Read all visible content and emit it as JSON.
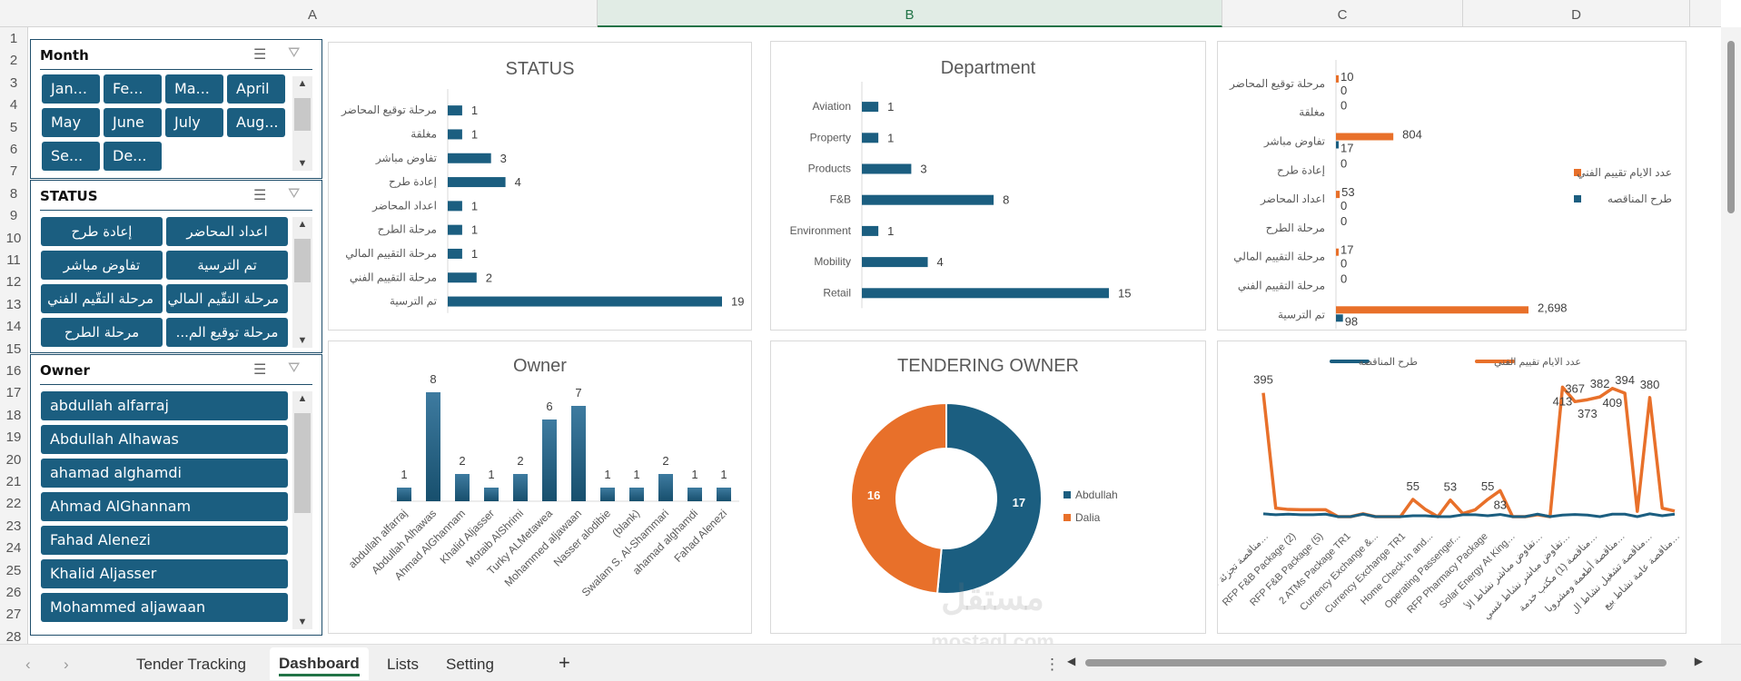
{
  "columns": [
    "A",
    "B",
    "C",
    "D"
  ],
  "rows": [
    "1",
    "2",
    "3",
    "4",
    "5",
    "6",
    "7",
    "8",
    "9",
    "10",
    "11",
    "12",
    "13",
    "14",
    "15",
    "16",
    "17",
    "18",
    "19",
    "20",
    "21",
    "22",
    "23",
    "24",
    "25",
    "26",
    "27",
    "28"
  ],
  "slicers": {
    "month": {
      "title": "Month",
      "items": [
        "Jan...",
        "Fe...",
        "Ma...",
        "April",
        "May",
        "June",
        "July",
        "Aug...",
        "Se...",
        "De..."
      ]
    },
    "status": {
      "title": "STATUS",
      "items": [
        "إعادة طرح",
        "اعداد المحاضر",
        "تفاوض مباشر",
        "تم الترسية",
        "مرحلة التقّيم الفني",
        "مرحلة التقّيم المالي",
        "مرحلة الطرح",
        "مرحلة توقيع الم..."
      ]
    },
    "owner": {
      "title": "Owner",
      "items": [
        "abdullah alfarraj",
        "Abdullah Alhawas",
        "ahamad alghamdi",
        "Ahmad AlGhannam",
        "Fahad Alenezi",
        "Khalid Aljasser",
        "Mohammed aljawaan"
      ]
    }
  },
  "colors": {
    "primary": "#1b5e80",
    "orange": "#e8702a"
  },
  "chart_data": [
    {
      "id": "status",
      "type": "bar",
      "orientation": "horizontal",
      "title": "STATUS",
      "categories": [
        "مرحلة توقيع المحاضر",
        "مغلقة",
        "تفاوض مباشر",
        "إعادة طرح",
        "اعداد المحاضر",
        "مرحلة الطرح",
        "مرحلة التقييم المالي",
        "مرحلة التقييم الفني",
        "تم الترسية"
      ],
      "values": [
        1,
        1,
        3,
        4,
        1,
        1,
        1,
        2,
        19
      ]
    },
    {
      "id": "department",
      "type": "bar",
      "orientation": "horizontal",
      "title": "Department",
      "categories": [
        "Aviation",
        "Property",
        "Products",
        "F&B",
        "Environment",
        "Mobility",
        "Retail"
      ],
      "values": [
        1,
        1,
        3,
        8,
        1,
        4,
        15
      ]
    },
    {
      "id": "days",
      "type": "bar",
      "orientation": "horizontal",
      "title": "",
      "categories": [
        "مرحلة توقيع المحاضر",
        "مغلقة",
        "تفاوض مباشر",
        "إعادة طرح",
        "اعداد المحاضر",
        "مرحلة الطرح",
        "مرحلة التقييم المالي",
        "مرحلة التقييم الفني",
        "تم الترسية"
      ],
      "series": [
        {
          "name": "عدد الايام تقييم الفني",
          "values": [
            10,
            0,
            804,
            0,
            53,
            0,
            17,
            0,
            2698
          ],
          "labels": [
            "10",
            "0",
            "804",
            "0",
            "53",
            "0",
            "17",
            "0",
            "2,698"
          ]
        },
        {
          "name": "طرح المناقصه",
          "values": [
            0,
            0,
            17,
            0,
            0,
            0,
            0,
            0,
            98
          ],
          "labels": [
            "0",
            "",
            "17",
            "",
            "0",
            "",
            "0",
            "",
            "98"
          ]
        }
      ],
      "legend": "right"
    },
    {
      "id": "owner",
      "type": "bar",
      "title": "Owner",
      "categories": [
        "abdullah alfarraj",
        "Abdullah Alhawas",
        "Ahmad AlGhannam",
        "Khalid Aljasser",
        "Motaib AlShrimi",
        "Turky ALMetawea",
        "Mohammed aljawaan",
        "Nasser alodibie",
        "(blank)",
        "Swalam S. Al-Shammari",
        "ahamad alghamdi",
        "Fahad Alenezi"
      ],
      "values": [
        1,
        8,
        2,
        1,
        2,
        6,
        7,
        1,
        1,
        2,
        1,
        1
      ]
    },
    {
      "id": "tendering",
      "type": "pie",
      "donut": true,
      "title": "TENDERING OWNER",
      "categories": [
        "Abdullah",
        "Dalia"
      ],
      "values": [
        17,
        16
      ],
      "legend": "right"
    },
    {
      "id": "line",
      "type": "line",
      "title": "",
      "legend": "top",
      "x_labels": [
        "مناقصة تجزئة عامة في...",
        "RFP F&B Package (2)",
        "RFP F&B Package (5)",
        "2 ATMs Package TR1",
        "Currency Exchange &...",
        "Currency Exchange TR1",
        "Home Check-In and...",
        "Operating Passenger...",
        "RFP Pharmacy Package",
        "Solar Energy At King...",
        "تفاوض مباشر نشاط الأطعمة...",
        "تفاوض مباشر نشاط غسيل...",
        "مناقصة (1) مكتب خدمة...",
        "مناقصة أطعمة ومشروبات...",
        "مناقصة تشغيل نشاط الأجرة...",
        "مناقصة عامة نشاط بيع..."
      ],
      "series": [
        {
          "name": "عدد الايام تقييم الفني",
          "values": [
            395,
            27,
            23,
            22,
            22,
            22,
            0,
            0,
            9,
            0,
            0,
            0,
            55,
            23,
            0,
            53,
            10,
            22,
            55,
            83,
            0,
            0,
            6,
            0,
            413,
            367,
            373,
            382,
            409,
            394,
            17,
            380,
            27,
            18
          ]
        },
        {
          "name": "طرح المناقصه",
          "values": [
            9,
            6,
            8,
            6,
            6,
            8,
            0,
            0,
            8,
            0,
            0,
            0,
            3,
            3,
            0,
            0,
            6,
            6,
            3,
            7,
            0,
            0,
            8,
            0,
            5,
            7,
            5,
            0,
            8,
            8,
            0,
            9,
            3,
            8
          ]
        }
      ]
    }
  ],
  "tabs": [
    "Tender Tracking",
    "Dashboard",
    "Lists",
    "Setting"
  ],
  "active_tab": "Dashboard",
  "watermark": "مستقل mostaql.com"
}
